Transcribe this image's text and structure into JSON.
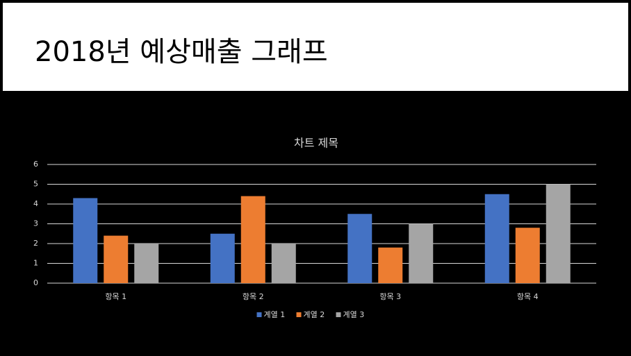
{
  "slide": {
    "title": "2018년 예상매출 그래프"
  },
  "chart_data": {
    "type": "bar",
    "title": "차트 제목",
    "categories": [
      "항목 1",
      "항목 2",
      "항목 3",
      "항목 4"
    ],
    "series": [
      {
        "name": "계열 1",
        "color": "#4472c4",
        "values": [
          4.3,
          2.5,
          3.5,
          4.5
        ]
      },
      {
        "name": "계열 2",
        "color": "#ed7d31",
        "values": [
          2.4,
          4.4,
          1.8,
          2.8
        ]
      },
      {
        "name": "계열 3",
        "color": "#a5a5a5",
        "values": [
          2,
          2,
          3,
          5
        ]
      }
    ],
    "ylim": [
      0,
      6
    ],
    "yticks": [
      0,
      1,
      2,
      3,
      4,
      5,
      6
    ],
    "grid": true,
    "legend": "bottom"
  }
}
